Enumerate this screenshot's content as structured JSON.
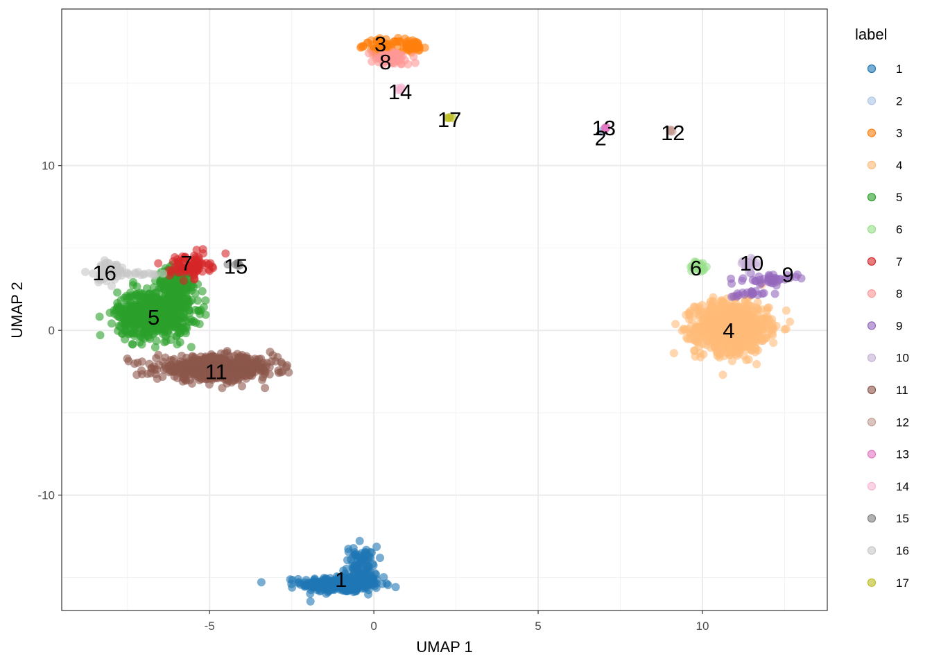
{
  "chart_data": {
    "type": "scatter",
    "xlabel": "UMAP 1",
    "ylabel": "UMAP 2",
    "xlim": [
      -9.5,
      13.8
    ],
    "ylim": [
      -17.0,
      19.5
    ],
    "xticks": [
      -5,
      0,
      5,
      10
    ],
    "xtick_labels": [
      "-5",
      "0",
      "5",
      "10"
    ],
    "yticks": [
      -10,
      0,
      10
    ],
    "ytick_labels": [
      "-10",
      "0",
      "10"
    ],
    "grid": true,
    "legend": {
      "title": "label",
      "position": "right"
    },
    "series": [
      {
        "name": "1",
        "color": "#1f77b4",
        "label_pos": [
          -1.0,
          -15.1
        ],
        "clusters": [
          {
            "cx": -1.0,
            "cy": -15.4,
            "sx": 0.6,
            "sy": 0.25,
            "n": 320
          },
          {
            "cx": -0.4,
            "cy": -14.3,
            "sx": 0.25,
            "sy": 0.6,
            "n": 90
          }
        ]
      },
      {
        "name": "2",
        "color": "#aec7e8",
        "label_pos": [
          6.9,
          11.7
        ],
        "clusters": [
          {
            "cx": 6.95,
            "cy": 12.1,
            "sx": 0.05,
            "sy": 0.05,
            "n": 6
          }
        ]
      },
      {
        "name": "3",
        "color": "#ff7f0e",
        "label_pos": [
          0.2,
          17.4
        ],
        "clusters": [
          {
            "cx": 0.3,
            "cy": 17.3,
            "sx": 0.3,
            "sy": 0.2,
            "n": 50
          },
          {
            "cx": 1.2,
            "cy": 17.2,
            "sx": 0.2,
            "sy": 0.2,
            "n": 40
          }
        ]
      },
      {
        "name": "4",
        "color": "#ffbb78",
        "label_pos": [
          10.8,
          0.0
        ],
        "clusters": [
          {
            "cx": 10.9,
            "cy": 0.2,
            "sx": 0.55,
            "sy": 0.75,
            "n": 900
          }
        ]
      },
      {
        "name": "5",
        "color": "#2ca02c",
        "label_pos": [
          -6.7,
          0.8
        ],
        "clusters": [
          {
            "cx": -6.7,
            "cy": 1.0,
            "sx": 0.55,
            "sy": 0.7,
            "n": 700
          },
          {
            "cx": -6.0,
            "cy": 2.8,
            "sx": 0.3,
            "sy": 0.5,
            "n": 150
          }
        ]
      },
      {
        "name": "6",
        "color": "#98df8a",
        "label_pos": [
          9.8,
          3.8
        ],
        "clusters": [
          {
            "cx": 9.9,
            "cy": 3.9,
            "sx": 0.15,
            "sy": 0.2,
            "n": 25
          }
        ]
      },
      {
        "name": "7",
        "color": "#d62728",
        "label_pos": [
          -5.7,
          4.1
        ],
        "clusters": [
          {
            "cx": -5.6,
            "cy": 3.9,
            "sx": 0.3,
            "sy": 0.35,
            "n": 90
          }
        ]
      },
      {
        "name": "8",
        "color": "#ff9896",
        "label_pos": [
          0.35,
          16.3
        ],
        "clusters": [
          {
            "cx": 0.5,
            "cy": 16.5,
            "sx": 0.3,
            "sy": 0.2,
            "n": 70
          }
        ]
      },
      {
        "name": "9",
        "color": "#9467bd",
        "label_pos": [
          12.6,
          3.4
        ],
        "clusters": [
          {
            "cx": 12.1,
            "cy": 3.1,
            "sx": 0.4,
            "sy": 0.15,
            "n": 40
          },
          {
            "cx": 11.3,
            "cy": 2.2,
            "sx": 0.3,
            "sy": 0.1,
            "n": 20
          }
        ]
      },
      {
        "name": "10",
        "color": "#c5b0d5",
        "label_pos": [
          11.5,
          4.1
        ],
        "clusters": [
          {
            "cx": 11.4,
            "cy": 4.0,
            "sx": 0.15,
            "sy": 0.2,
            "n": 20
          }
        ]
      },
      {
        "name": "11",
        "color": "#8c564b",
        "label_pos": [
          -4.8,
          -2.5
        ],
        "clusters": [
          {
            "cx": -4.8,
            "cy": -2.3,
            "sx": 0.9,
            "sy": 0.35,
            "n": 600
          }
        ]
      },
      {
        "name": "12",
        "color": "#c49c94",
        "label_pos": [
          9.1,
          12.0
        ],
        "clusters": [
          {
            "cx": 9.05,
            "cy": 12.1,
            "sx": 0.04,
            "sy": 0.04,
            "n": 5
          }
        ]
      },
      {
        "name": "13",
        "color": "#e377c2",
        "label_pos": [
          7.0,
          12.3
        ],
        "clusters": [
          {
            "cx": 7.05,
            "cy": 12.3,
            "sx": 0.05,
            "sy": 0.05,
            "n": 5
          }
        ]
      },
      {
        "name": "14",
        "color": "#f7b6d2",
        "label_pos": [
          0.8,
          14.5
        ],
        "clusters": [
          {
            "cx": 0.8,
            "cy": 14.6,
            "sx": 0.05,
            "sy": 0.05,
            "n": 5
          }
        ]
      },
      {
        "name": "15",
        "color": "#7f7f7f",
        "label_pos": [
          -4.2,
          3.9
        ],
        "clusters": [
          {
            "cx": -4.2,
            "cy": 4.0,
            "sx": 0.1,
            "sy": 0.05,
            "n": 6
          }
        ]
      },
      {
        "name": "16",
        "color": "#c7c7c7",
        "label_pos": [
          -8.2,
          3.5
        ],
        "clusters": [
          {
            "cx": -8.1,
            "cy": 3.6,
            "sx": 0.3,
            "sy": 0.35,
            "n": 50
          },
          {
            "cx": -7.1,
            "cy": 3.4,
            "sx": 0.3,
            "sy": 0.05,
            "n": 15
          }
        ]
      },
      {
        "name": "17",
        "color": "#bcbd22",
        "label_pos": [
          2.3,
          12.8
        ],
        "clusters": [
          {
            "cx": 2.3,
            "cy": 12.9,
            "sx": 0.04,
            "sy": 0.04,
            "n": 4
          }
        ]
      }
    ]
  }
}
